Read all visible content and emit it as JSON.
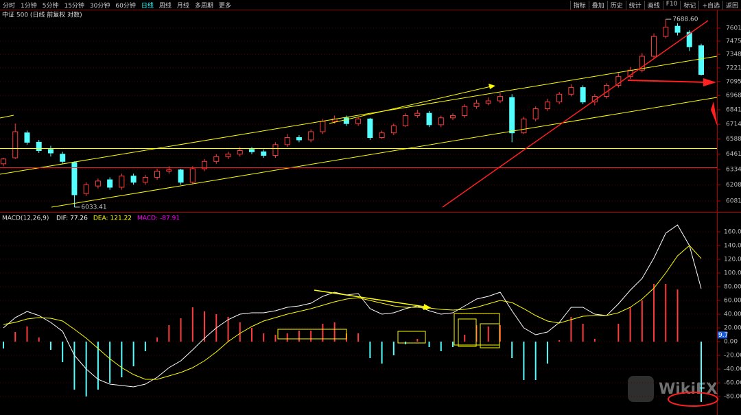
{
  "toolbar": {
    "tabs": [
      "分时",
      "1分钟",
      "5分钟",
      "15分钟",
      "30分钟",
      "60分钟",
      "日线",
      "周线",
      "月线",
      "多周期",
      "更多"
    ],
    "active_tab": 6,
    "buttons": [
      "指标",
      "叠加",
      "历史",
      "统计",
      "画线",
      "F10",
      "标记",
      "+自选",
      "返回"
    ]
  },
  "watermark": "WikiFX",
  "chart_data": [
    {
      "type": "candlestick",
      "title": "中证 500 (日线 前复权 对数)",
      "log_scale": true,
      "up_color": "#ff3c3c",
      "down_color": "#54ffff",
      "open": [
        6380,
        6430,
        6640,
        6560,
        6500,
        6460,
        6390,
        6140,
        6200,
        6250,
        6190,
        6280,
        6230,
        6270,
        6320,
        6330,
        6230,
        6340,
        6400,
        6440,
        6460,
        6500,
        6480,
        6450,
        6540,
        6600,
        6580,
        6650,
        6740,
        6770,
        6720,
        6760,
        6600,
        6640,
        6700,
        6790,
        6810,
        6710,
        6770,
        6790,
        6870,
        6900,
        6920,
        6950,
        6640,
        6760,
        6850,
        6910,
        6980,
        7040,
        6910,
        6960,
        7060,
        7140,
        7200,
        7330,
        7520,
        7620,
        7560,
        7430
      ],
      "high": [
        6430,
        6720,
        6660,
        6580,
        6530,
        6480,
        6400,
        6230,
        6260,
        6270,
        6300,
        6300,
        6290,
        6340,
        6360,
        6340,
        6360,
        6420,
        6460,
        6480,
        6520,
        6520,
        6500,
        6560,
        6630,
        6620,
        6670,
        6760,
        6790,
        6790,
        6780,
        6770,
        6660,
        6720,
        6810,
        6840,
        6830,
        6790,
        6810,
        6890,
        6930,
        6950,
        6990,
        6980,
        6780,
        6870,
        6940,
        7000,
        7070,
        7060,
        6980,
        7080,
        7170,
        7230,
        7360,
        7550,
        7688.6,
        7650,
        7580,
        7450
      ],
      "low": [
        6360,
        6420,
        6540,
        6470,
        6440,
        6380,
        6033.41,
        6120,
        6180,
        6170,
        6170,
        6210,
        6210,
        6250,
        6300,
        6210,
        6220,
        6320,
        6380,
        6420,
        6440,
        6460,
        6430,
        6430,
        6520,
        6560,
        6560,
        6630,
        6720,
        6700,
        6700,
        6580,
        6590,
        6620,
        6690,
        6770,
        6690,
        6690,
        6750,
        6770,
        6850,
        6880,
        6900,
        6560,
        6630,
        6740,
        6830,
        6890,
        6960,
        6890,
        6880,
        6940,
        7040,
        7120,
        7180,
        7310,
        7500,
        7530,
        7380,
        7150
      ],
      "close": [
        6420,
        6650,
        6560,
        6490,
        6470,
        6400,
        6130,
        6210,
        6240,
        6190,
        6280,
        6230,
        6270,
        6320,
        6330,
        6230,
        6340,
        6400,
        6440,
        6460,
        6490,
        6480,
        6450,
        6540,
        6600,
        6580,
        6650,
        6740,
        6760,
        6720,
        6760,
        6600,
        6640,
        6700,
        6790,
        6810,
        6710,
        6770,
        6790,
        6870,
        6900,
        6920,
        6960,
        6640,
        6760,
        6850,
        6910,
        6980,
        7040,
        6910,
        6960,
        7060,
        7140,
        7200,
        7330,
        7520,
        7610,
        7560,
        7420,
        7160
      ],
      "ylim": [
        6017,
        7689
      ],
      "yticks": [
        7601,
        7475,
        7348,
        7221,
        7095,
        6968,
        6841,
        6714,
        6588,
        6461,
        6334,
        6208,
        6081
      ],
      "grid": true,
      "annotations": [
        "7688.60",
        "6033.41"
      ]
    },
    {
      "type": "macd",
      "title": "MACD(12,26,9)",
      "up_color": "#ff3c3c",
      "down_color": "#54ffff",
      "cursor_value": 9.7,
      "series": [
        {
          "name": "DIF:",
          "kind": "line",
          "color": "#ffffff",
          "values": [
            20,
            35,
            44,
            38,
            28,
            15,
            -20,
            -40,
            -55,
            -62,
            -64,
            -66,
            -62,
            -52,
            -38,
            -28,
            -12,
            5,
            20,
            32,
            40,
            42,
            42,
            45,
            50,
            52,
            56,
            66,
            72,
            68,
            70,
            48,
            40,
            42,
            48,
            52,
            45,
            40,
            42,
            52,
            62,
            66,
            72,
            45,
            20,
            10,
            14,
            28,
            50,
            50,
            40,
            38,
            55,
            75,
            92,
            122,
            158,
            170,
            140,
            77.26
          ]
        },
        {
          "name": "DEA:",
          "kind": "line",
          "color": "#ffff00",
          "values": [
            25,
            28,
            33,
            35,
            34,
            30,
            18,
            5,
            -10,
            -25,
            -38,
            -48,
            -55,
            -55,
            -50,
            -45,
            -38,
            -28,
            -15,
            0,
            12,
            22,
            30,
            35,
            40,
            44,
            48,
            53,
            58,
            62,
            64,
            60,
            56,
            52,
            50,
            50,
            49,
            47,
            46,
            47,
            50,
            55,
            60,
            57,
            48,
            38,
            30,
            27,
            32,
            37,
            38,
            38,
            42,
            50,
            62,
            78,
            100,
            125,
            140,
            121.22
          ]
        },
        {
          "name": "MACD:",
          "kind": "bar",
          "color": "#ff00ff",
          "values": [
            -10,
            14,
            22,
            6,
            -12,
            -30,
            -70,
            -80,
            -70,
            -60,
            -52,
            -36,
            -14,
            6,
            24,
            34,
            50,
            44,
            40,
            36,
            28,
            20,
            12,
            10,
            12,
            16,
            16,
            26,
            28,
            12,
            12,
            -24,
            -32,
            -20,
            -4,
            4,
            -8,
            -14,
            -8,
            10,
            24,
            22,
            24,
            -24,
            -56,
            -56,
            -32,
            2,
            36,
            26,
            4,
            0,
            26,
            50,
            60,
            84,
            84,
            76,
            0,
            -87.91
          ]
        }
      ],
      "ylim": [
        -102,
        186
      ],
      "yticks": [
        {
          "value": 160,
          "label": "160.00"
        },
        {
          "value": 140,
          "label": "140.00"
        },
        {
          "value": 120,
          "label": "120.00"
        },
        {
          "value": 100,
          "label": "100.00"
        },
        {
          "value": 80,
          "label": "80.00"
        },
        {
          "value": 60,
          "label": "60.00"
        },
        {
          "value": 40,
          "label": "40.00"
        },
        {
          "value": 20,
          "label": "20.00"
        },
        {
          "value": 0,
          "label": "0.00"
        },
        {
          "value": -20,
          "label": "-20.00"
        },
        {
          "value": -40,
          "label": "-40.00"
        },
        {
          "value": -60,
          "label": "-60.00"
        },
        {
          "value": -80,
          "label": "-80.00"
        }
      ],
      "grid": true
    }
  ]
}
